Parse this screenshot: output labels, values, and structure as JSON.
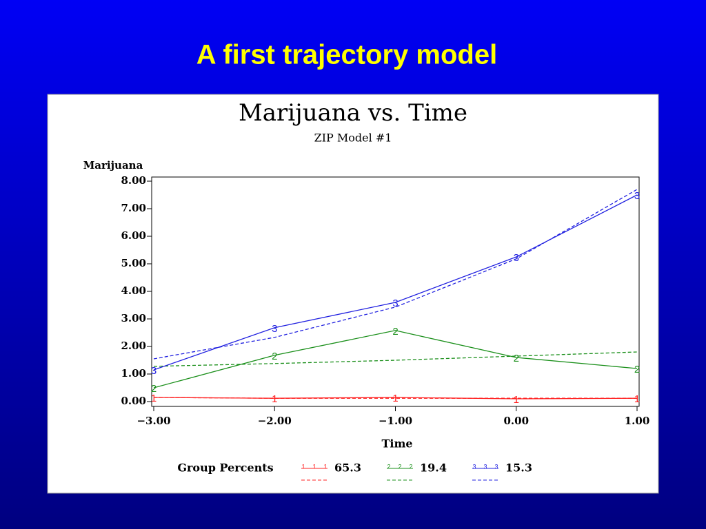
{
  "slide_title": "A first trajectory model",
  "chart_data": {
    "type": "line",
    "title": "Marijuana vs. Time",
    "subtitle": "ZIP Model #1",
    "y_label": "Marijuana",
    "x_label": "Time",
    "legend_title": "Group Percents",
    "x": [
      -3,
      -2,
      -1,
      0,
      1
    ],
    "xlim": [
      -3,
      1
    ],
    "xticks": [
      {
        "value": -3,
        "label": "−3.00"
      },
      {
        "value": -2,
        "label": "−2.00"
      },
      {
        "value": -1,
        "label": "−1.00"
      },
      {
        "value": 0,
        "label": "0.00"
      },
      {
        "value": 1,
        "label": "1.00"
      }
    ],
    "ylim": [
      0,
      8
    ],
    "yticks": [
      {
        "value": 0,
        "label": "0.00"
      },
      {
        "value": 1,
        "label": "1.00"
      },
      {
        "value": 2,
        "label": "2.00"
      },
      {
        "value": 3,
        "label": "3.00"
      },
      {
        "value": 4,
        "label": "4.00"
      },
      {
        "value": 5,
        "label": "5.00"
      },
      {
        "value": 6,
        "label": "6.00"
      },
      {
        "value": 7,
        "label": "7.00"
      },
      {
        "value": 8,
        "label": "8.00"
      }
    ],
    "series": [
      {
        "name": "65.3",
        "marker": "1",
        "color": "#ff2020",
        "values": [
          0.15,
          0.12,
          0.15,
          0.1,
          0.12
        ],
        "predicted": [
          0.15,
          0.12,
          0.12,
          0.12,
          0.12
        ]
      },
      {
        "name": "19.4",
        "marker": "2",
        "color": "#1a8f1a",
        "values": [
          0.5,
          1.68,
          2.58,
          1.6,
          1.2
        ],
        "predicted": [
          1.28,
          1.38,
          1.5,
          1.65,
          1.8
        ]
      },
      {
        "name": "15.3",
        "marker": "3",
        "color": "#2020e0",
        "values": [
          1.15,
          2.68,
          3.6,
          5.25,
          7.5
        ],
        "predicted": [
          1.55,
          2.33,
          3.43,
          5.18,
          7.7
        ]
      }
    ]
  }
}
